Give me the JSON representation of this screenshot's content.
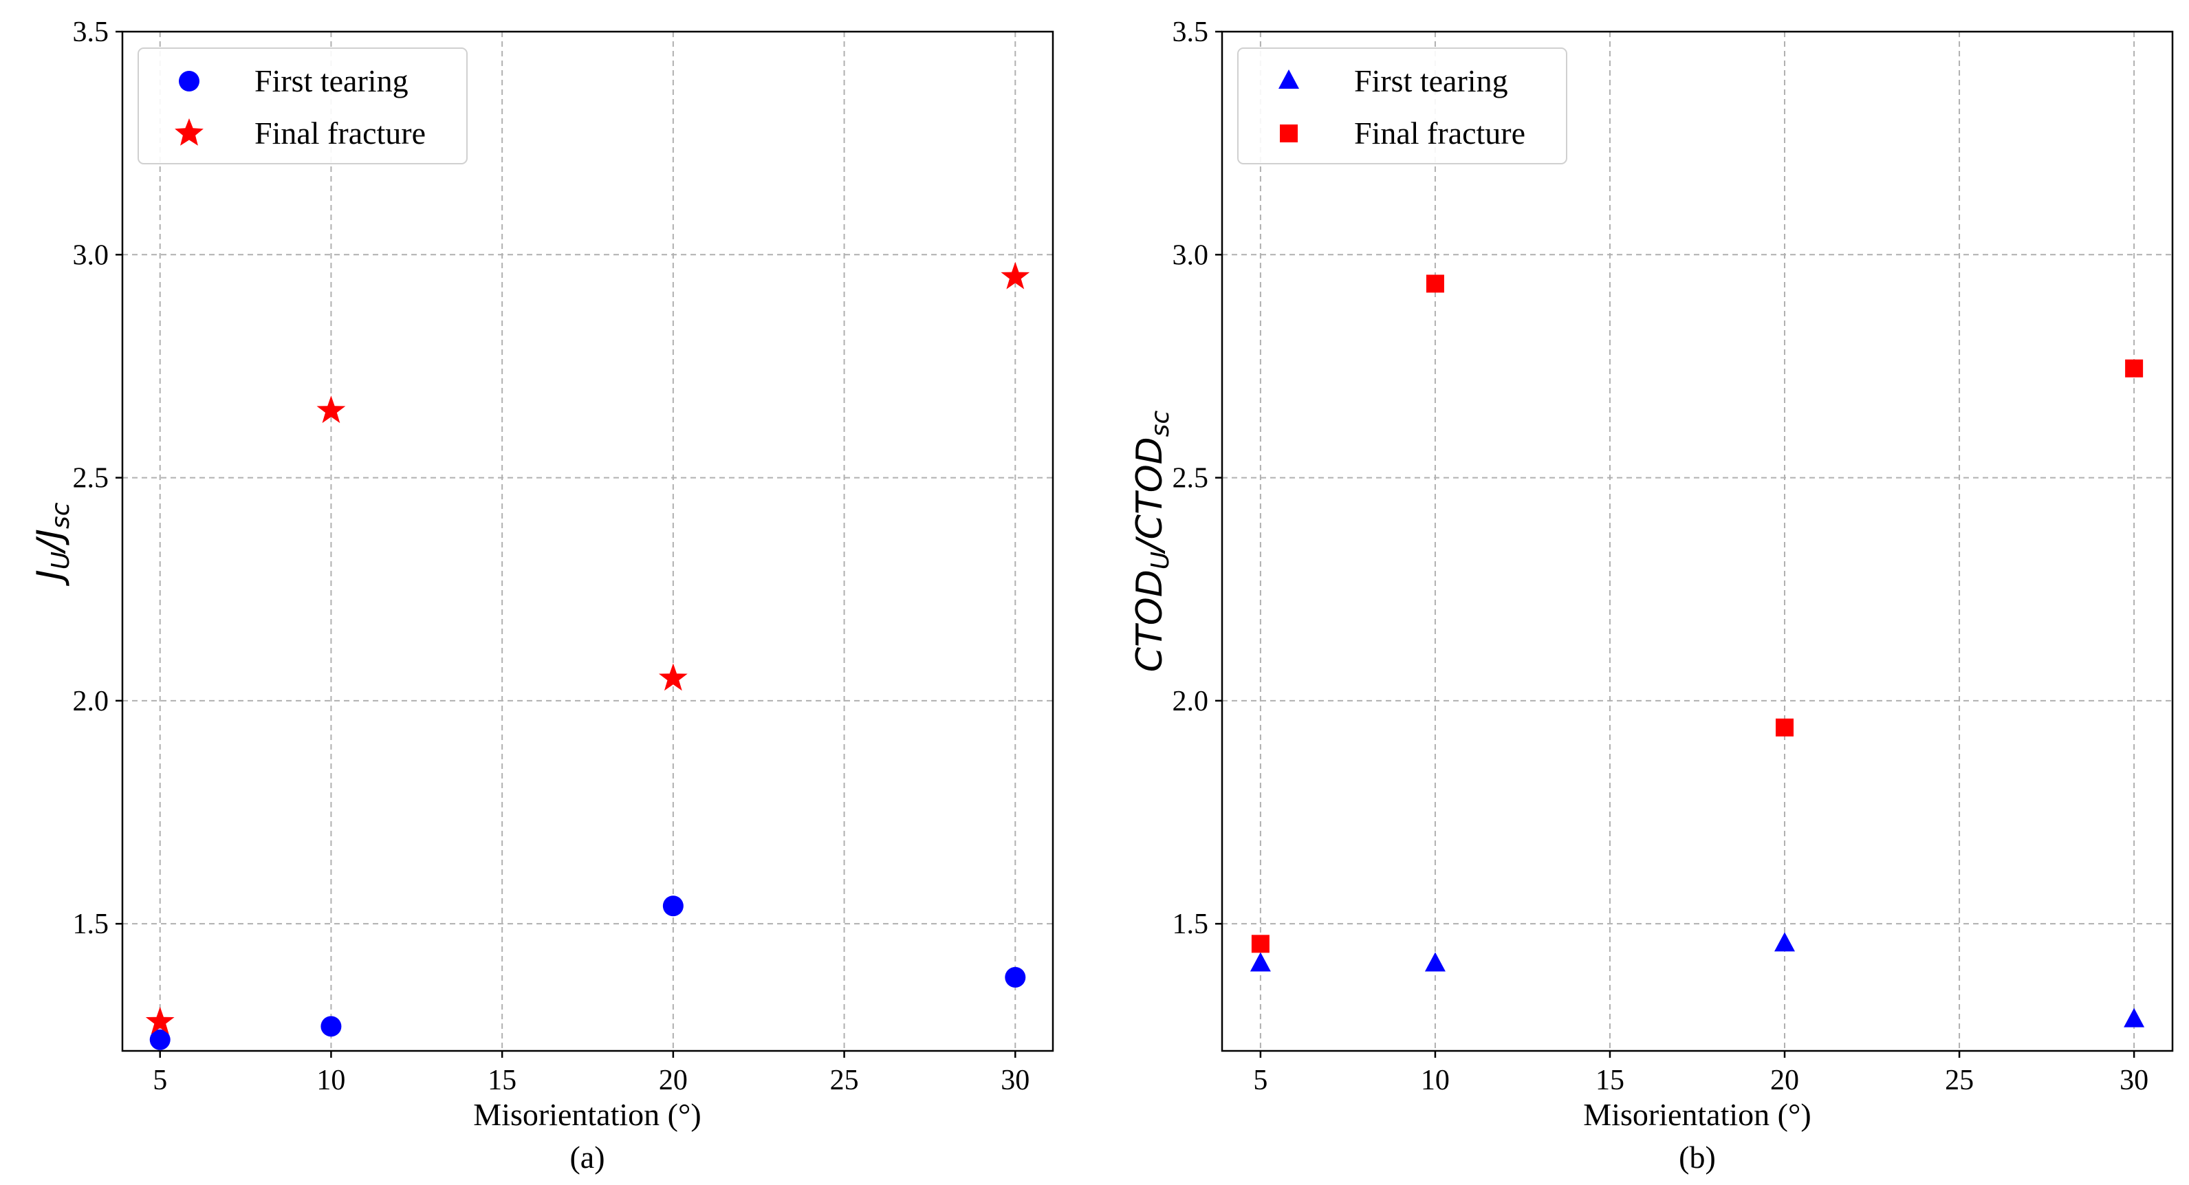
{
  "chart_data": [
    {
      "type": "scatter",
      "panel_label": "(a)",
      "xlabel": "Misorientation (°)",
      "ylabel": {
        "base": "J",
        "sub1": "U",
        "mid": "/J",
        "sub2": "sc"
      },
      "xlim": [
        3.9,
        31.1
      ],
      "ylim": [
        1.215,
        3.5
      ],
      "xticks": [
        5,
        10,
        15,
        20,
        25,
        30
      ],
      "xtick_labels": [
        "5",
        "10",
        "15",
        "20",
        "25",
        "30"
      ],
      "yticks": [
        1.5,
        2.0,
        2.5,
        3.0,
        3.5
      ],
      "ytick_labels": [
        "1.5",
        "2.0",
        "2.5",
        "3.0",
        "3.5"
      ],
      "grid": true,
      "legend_position": "top-left",
      "series": [
        {
          "name": "First tearing",
          "marker": "circle",
          "color": "#0000ff",
          "x": [
            5,
            10,
            20,
            30
          ],
          "y": [
            1.24,
            1.27,
            1.54,
            1.38
          ]
        },
        {
          "name": "Final fracture",
          "marker": "star",
          "color": "#ff0000",
          "x": [
            5,
            10,
            20,
            30
          ],
          "y": [
            1.28,
            2.65,
            2.05,
            2.95
          ]
        }
      ]
    },
    {
      "type": "scatter",
      "panel_label": "(b)",
      "xlabel": "Misorientation (°)",
      "ylabel": {
        "base": "CTOD",
        "sub1": "U",
        "mid": "/CTOD",
        "sub2": "sc"
      },
      "xlim": [
        3.9,
        31.1
      ],
      "ylim": [
        1.215,
        3.5
      ],
      "xticks": [
        5,
        10,
        15,
        20,
        25,
        30
      ],
      "xtick_labels": [
        "5",
        "10",
        "15",
        "20",
        "25",
        "30"
      ],
      "yticks": [
        1.5,
        2.0,
        2.5,
        3.0,
        3.5
      ],
      "ytick_labels": [
        "1.5",
        "2.0",
        "2.5",
        "3.0",
        "3.5"
      ],
      "grid": true,
      "legend_position": "top-left",
      "series": [
        {
          "name": "First tearing",
          "marker": "triangle",
          "color": "#0000ff",
          "x": [
            5,
            10,
            20,
            30
          ],
          "y": [
            1.41,
            1.41,
            1.455,
            1.285
          ]
        },
        {
          "name": "Final fracture",
          "marker": "square",
          "color": "#ff0000",
          "x": [
            5,
            10,
            20,
            30
          ],
          "y": [
            1.455,
            2.935,
            1.94,
            2.745
          ]
        }
      ]
    }
  ]
}
